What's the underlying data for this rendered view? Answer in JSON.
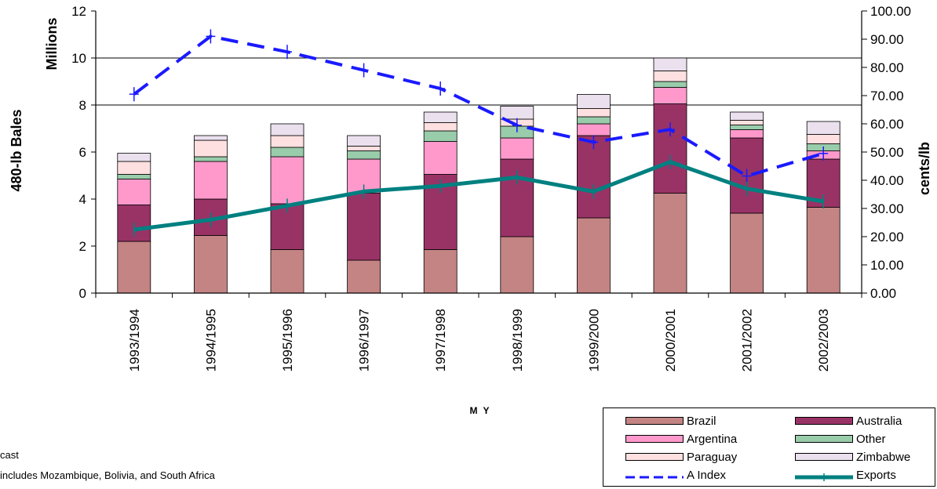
{
  "chart_data": {
    "type": "bar",
    "stacked": true,
    "categories": [
      "1993/1994",
      "1994/1995",
      "1995/1996",
      "1996/1997",
      "1997/1998",
      "1998/1999",
      "1999/2000",
      "2000/2001",
      "2001/2002",
      "2002/2003"
    ],
    "series": [
      {
        "name": "Brazil",
        "type": "bar",
        "axis": "left",
        "color": "#c48484",
        "values": [
          2.2,
          2.45,
          1.85,
          1.4,
          1.85,
          2.4,
          3.2,
          4.25,
          3.4,
          3.65
        ]
      },
      {
        "name": "Australia",
        "type": "bar",
        "axis": "left",
        "color": "#993366",
        "values": [
          1.55,
          1.55,
          1.95,
          2.85,
          3.2,
          3.3,
          3.5,
          3.8,
          3.2,
          2.05
        ]
      },
      {
        "name": "Argentina",
        "type": "bar",
        "axis": "left",
        "color": "#ff99cc",
        "values": [
          1.1,
          1.6,
          2.0,
          1.45,
          1.4,
          0.9,
          0.5,
          0.7,
          0.35,
          0.35
        ]
      },
      {
        "name": "Other",
        "type": "bar",
        "axis": "left",
        "color": "#99ccaa",
        "values": [
          0.2,
          0.2,
          0.4,
          0.35,
          0.45,
          0.5,
          0.3,
          0.25,
          0.2,
          0.3
        ]
      },
      {
        "name": "Paraguay",
        "type": "bar",
        "axis": "left",
        "color": "#ffe0e0",
        "values": [
          0.55,
          0.7,
          0.5,
          0.2,
          0.35,
          0.3,
          0.35,
          0.45,
          0.2,
          0.4
        ]
      },
      {
        "name": "Zimbabwe",
        "type": "bar",
        "axis": "left",
        "color": "#ebe0ee",
        "values": [
          0.35,
          0.2,
          0.5,
          0.45,
          0.45,
          0.55,
          0.6,
          0.55,
          0.35,
          0.55
        ]
      },
      {
        "name": "A Index",
        "type": "line",
        "axis": "right",
        "color": "#1a1aff",
        "values": [
          70.5,
          91,
          85.5,
          79,
          72.5,
          59.5,
          53.5,
          58,
          41.5,
          49.5
        ]
      },
      {
        "name": "Exports",
        "type": "line",
        "axis": "right",
        "color": "#008080",
        "values": [
          22.5,
          26,
          31,
          36,
          38,
          41,
          36,
          46.5,
          37,
          32.5
        ]
      }
    ],
    "ylabel": "480-lb Bales",
    "ylabel_unit": "Millions",
    "y2label": "cents/lb",
    "xlabel": "M Y",
    "ylim": [
      0,
      12
    ],
    "y2lim": [
      0,
      100
    ],
    "yticks": [
      "0",
      "2",
      "4",
      "6",
      "8",
      "10",
      "12"
    ],
    "y2ticks": [
      "0.00",
      "10.00",
      "20.00",
      "30.00",
      "40.00",
      "50.00",
      "60.00",
      "70.00",
      "80.00",
      "90.00",
      "100.00"
    ],
    "grid": "major horizontal on left axis",
    "legend_position": "bottom-right",
    "legend": [
      {
        "label": "Brazil",
        "series": "Brazil"
      },
      {
        "label": "Australia",
        "series": "Australia"
      },
      {
        "label": "Argentina",
        "series": "Argentina"
      },
      {
        "label": "Other",
        "series": "Other"
      },
      {
        "label": "Paraguay",
        "series": "Paraguay"
      },
      {
        "label": "Zimbabwe",
        "series": "Zimbabwe"
      },
      {
        "label": "A Index",
        "series": "A Index"
      },
      {
        "label": "Exports",
        "series": "Exports"
      }
    ]
  },
  "notes": {
    "line1": "cast",
    "line2": "includes Mozambique, Bolivia, and South Africa"
  }
}
